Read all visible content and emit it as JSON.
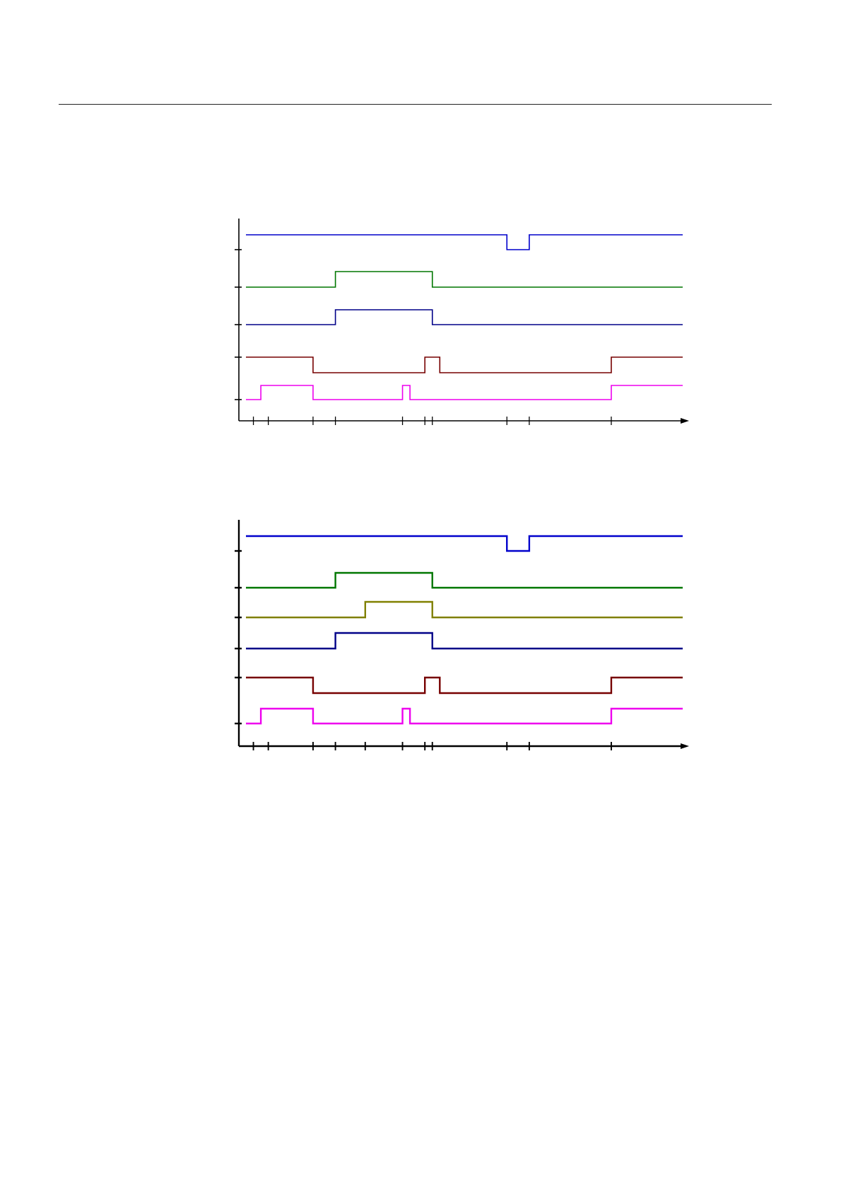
{
  "colors": {
    "axis": "#000000",
    "blue": "#0000cc",
    "green": "#007700",
    "olive": "#808000",
    "navy": "#000088",
    "maroon": "#770000",
    "magenta": "#ee00ee"
  },
  "diagrams": [
    {
      "name": "timing-diagram-1",
      "tick_times": [
        1,
        3,
        9,
        12,
        21,
        24,
        25,
        35,
        38,
        49
      ],
      "signals": [
        {
          "color_key": "blue",
          "initial": "high",
          "transitions": [
            35,
            38
          ]
        },
        {
          "color_key": "green",
          "initial": "low",
          "transitions": [
            12,
            25
          ]
        },
        {
          "color_key": "navy",
          "initial": "low",
          "transitions": [
            12,
            25
          ]
        },
        {
          "color_key": "maroon",
          "initial": "high",
          "transitions": [
            9,
            24,
            26,
            49
          ]
        },
        {
          "color_key": "magenta",
          "initial": "low",
          "transitions": [
            2,
            9,
            21,
            22,
            49
          ]
        }
      ]
    },
    {
      "name": "timing-diagram-2",
      "tick_times": [
        1,
        3,
        9,
        12,
        16,
        21,
        24,
        25,
        35,
        38,
        49
      ],
      "signals": [
        {
          "color_key": "blue",
          "initial": "high",
          "transitions": [
            35,
            38
          ]
        },
        {
          "color_key": "green",
          "initial": "low",
          "transitions": [
            12,
            25
          ]
        },
        {
          "color_key": "olive",
          "initial": "low",
          "transitions": [
            16,
            25
          ]
        },
        {
          "color_key": "navy",
          "initial": "low",
          "transitions": [
            12,
            25
          ]
        },
        {
          "color_key": "maroon",
          "initial": "high",
          "transitions": [
            9,
            24,
            26,
            49
          ]
        },
        {
          "color_key": "magenta",
          "initial": "low",
          "transitions": [
            2,
            9,
            21,
            22,
            49
          ]
        }
      ]
    }
  ]
}
